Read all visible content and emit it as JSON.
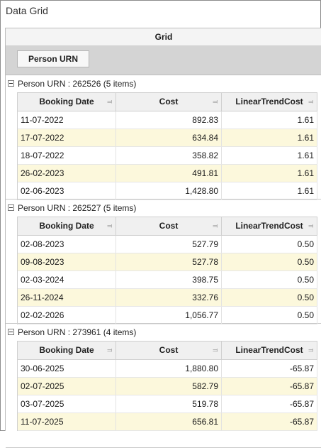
{
  "window": {
    "title": "Data Grid"
  },
  "grid": {
    "header": "Grid",
    "group_by_chip": "Person URN",
    "columns": [
      "Booking Date",
      "Cost",
      "LinearTrendCost"
    ],
    "groups": [
      {
        "label": "Person URN : 262526 (5 items)",
        "rows": [
          [
            "11-07-2022",
            "892.83",
            "1.61"
          ],
          [
            "17-07-2022",
            "634.84",
            "1.61"
          ],
          [
            "18-07-2022",
            "358.82",
            "1.61"
          ],
          [
            "26-02-2023",
            "491.81",
            "1.61"
          ],
          [
            "02-06-2023",
            "1,428.80",
            "1.61"
          ]
        ]
      },
      {
        "label": "Person URN : 262527 (5 items)",
        "rows": [
          [
            "02-08-2023",
            "527.79",
            "0.50"
          ],
          [
            "09-08-2023",
            "527.78",
            "0.50"
          ],
          [
            "02-03-2024",
            "398.75",
            "0.50"
          ],
          [
            "26-11-2024",
            "332.76",
            "0.50"
          ],
          [
            "02-02-2026",
            "1,056.77",
            "0.50"
          ]
        ]
      },
      {
        "label": "Person URN : 273961 (4 items)",
        "rows": [
          [
            "30-06-2025",
            "1,880.80",
            "-65.87"
          ],
          [
            "02-07-2025",
            "582.79",
            "-65.87"
          ],
          [
            "03-07-2025",
            "519.78",
            "-65.87"
          ],
          [
            "11-07-2025",
            "656.81",
            "-65.87"
          ]
        ]
      }
    ]
  }
}
